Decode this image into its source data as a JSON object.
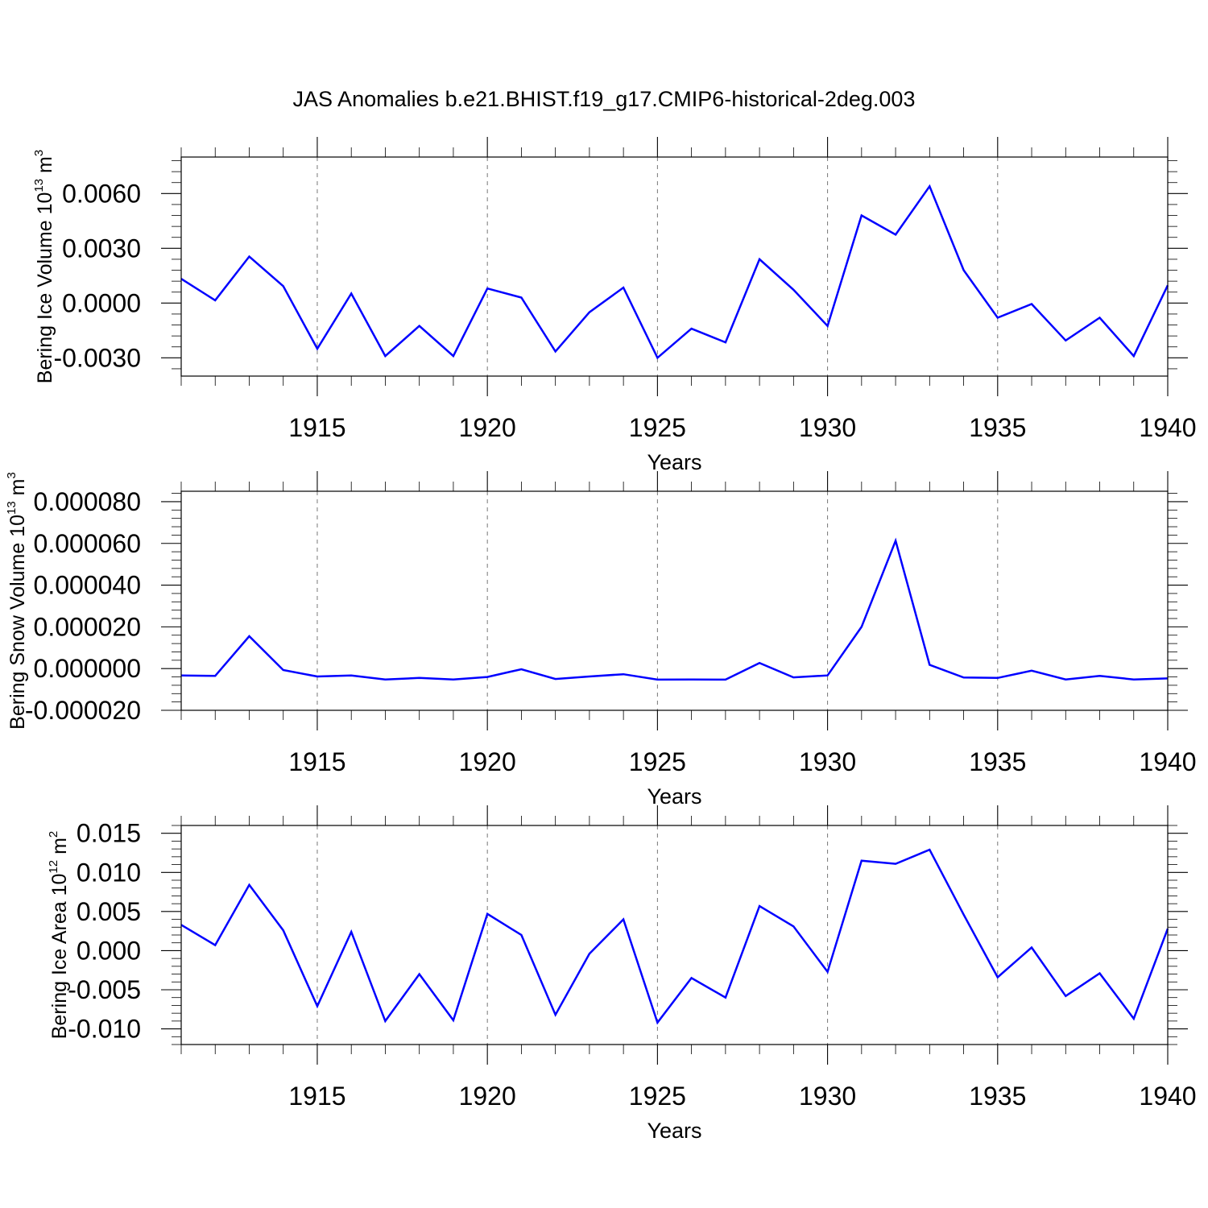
{
  "chart_data": {
    "title": "JAS Anomalies b.e21.BHIST.f19_g17.CMIP6-historical-2deg.003",
    "years": [
      1911,
      1912,
      1913,
      1914,
      1915,
      1916,
      1917,
      1918,
      1919,
      1920,
      1921,
      1922,
      1923,
      1924,
      1925,
      1926,
      1927,
      1928,
      1929,
      1930,
      1931,
      1932,
      1933,
      1934,
      1935,
      1936,
      1937,
      1938,
      1939,
      1940
    ],
    "panels": [
      {
        "type": "line",
        "ylabel": "Bering Ice Volume 10",
        "ylabel_sup": "13",
        "ylabel_unit": " m",
        "ylabel_unit_sup": "3",
        "xlabel": "Years",
        "xlim": [
          1911,
          1940
        ],
        "ylim": [
          -0.004,
          0.008
        ],
        "yticks": [
          -0.003,
          0.0,
          0.003,
          0.006
        ],
        "ytick_labels": [
          "-0.0030",
          "0.0000",
          "0.0030",
          "0.0060"
        ],
        "xticks": [
          1915,
          1920,
          1925,
          1930,
          1935,
          1940
        ],
        "xtick_labels": [
          "1915",
          "1920",
          "1925",
          "1930",
          "1935",
          "1940"
        ],
        "series": [
          {
            "name": "Bering Ice Volume",
            "color": "#0000ff",
            "values": [
              0.00133,
              0.00015,
              0.00255,
              0.00093,
              -0.0025,
              0.00052,
              -0.0029,
              -0.00125,
              -0.0029,
              0.0008,
              0.0003,
              -0.00265,
              -0.0005,
              0.00085,
              -0.003,
              -0.0014,
              -0.00215,
              0.0024,
              0.00073,
              -0.00125,
              0.0048,
              0.00375,
              0.0064,
              0.0018,
              -0.0008,
              -5e-05,
              -0.00205,
              -0.0008,
              -0.0029,
              0.00097
            ]
          }
        ]
      },
      {
        "type": "line",
        "ylabel": "Bering Snow Volume 10",
        "ylabel_sup": "13",
        "ylabel_unit": " m",
        "ylabel_unit_sup": "3",
        "xlabel": "Years",
        "xlim": [
          1911,
          1940
        ],
        "ylim": [
          -2e-05,
          8.5e-05
        ],
        "yticks": [
          -2e-05,
          0.0,
          2e-05,
          4e-05,
          6e-05,
          8e-05
        ],
        "ytick_labels": [
          "-0.000020",
          "0.000000",
          "0.000020",
          "0.000040",
          "0.000060",
          "0.000080"
        ],
        "xticks": [
          1915,
          1920,
          1925,
          1930,
          1935,
          1940
        ],
        "xtick_labels": [
          "1915",
          "1920",
          "1925",
          "1930",
          "1935",
          "1940"
        ],
        "series": [
          {
            "name": "Bering Snow Volume",
            "color": "#0000ff",
            "values": [
              -3.3e-06,
              -3.5e-06,
              1.55e-05,
              -7e-07,
              -3.8e-06,
              -3.3e-06,
              -5.2e-06,
              -4.5e-06,
              -5.2e-06,
              -4e-06,
              -3e-07,
              -5e-06,
              -3.8e-06,
              -2.7e-06,
              -5.3e-06,
              -5.2e-06,
              -5.3e-06,
              2.7e-06,
              -4.2e-06,
              -3.3e-06,
              2e-05,
              6.13e-05,
              1.8e-06,
              -4.3e-06,
              -4.5e-06,
              -1e-06,
              -5.2e-06,
              -3.5e-06,
              -5.2e-06,
              -4.7e-06
            ]
          }
        ]
      },
      {
        "type": "line",
        "ylabel": "Bering Ice Area 10",
        "ylabel_sup": "12",
        "ylabel_unit": " m",
        "ylabel_unit_sup": "2",
        "xlabel": "Years",
        "xlim": [
          1911,
          1940
        ],
        "ylim": [
          -0.012,
          0.016
        ],
        "yticks": [
          -0.01,
          -0.005,
          0.0,
          0.005,
          0.01,
          0.015
        ],
        "ytick_labels": [
          "-0.010",
          "-0.005",
          "0.000",
          "0.005",
          "0.010",
          "0.015"
        ],
        "xticks": [
          1915,
          1920,
          1925,
          1930,
          1935,
          1940
        ],
        "xtick_labels": [
          "1915",
          "1920",
          "1925",
          "1930",
          "1935",
          "1940"
        ],
        "series": [
          {
            "name": "Bering Ice Area",
            "color": "#0000ff",
            "values": [
              0.0033,
              0.0007,
              0.0084,
              0.0026,
              -0.0071,
              0.0024,
              -0.009,
              -0.003,
              -0.0089,
              0.0047,
              0.002,
              -0.0082,
              -0.0004,
              0.004,
              -0.0092,
              -0.0035,
              -0.006,
              0.0057,
              0.0031,
              -0.0027,
              0.0115,
              0.0111,
              0.0129,
              0.0046,
              -0.0034,
              0.0004,
              -0.0058,
              -0.0029,
              -0.0087,
              0.0028
            ]
          }
        ]
      }
    ]
  }
}
